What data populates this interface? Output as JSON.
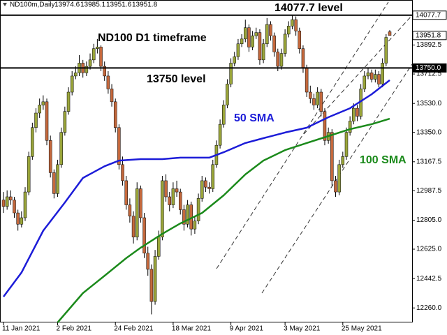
{
  "chart_data": {
    "type": "candlestick",
    "header": "ND100m,Daily",
    "title": "ND100 D1 timeframe",
    "categories": [
      "11 Jan 2021",
      null,
      null,
      null,
      null,
      null,
      null,
      null,
      null,
      null,
      null,
      null,
      null,
      null,
      null,
      "2 Feb 2021",
      null,
      null,
      null,
      null,
      null,
      null,
      null,
      null,
      null,
      null,
      null,
      null,
      null,
      null,
      null,
      "24 Feb 2021",
      null,
      null,
      null,
      null,
      null,
      null,
      null,
      null,
      null,
      null,
      null,
      null,
      null,
      null,
      null,
      "18 Mar 2021",
      null,
      null,
      null,
      null,
      null,
      null,
      null,
      null,
      null,
      null,
      null,
      null,
      null,
      null,
      null,
      "9 Apr 2021",
      null,
      null,
      null,
      null,
      null,
      null,
      null,
      null,
      null,
      null,
      null,
      null,
      null,
      null,
      "3 May 2021",
      null,
      null,
      null,
      null,
      null,
      null,
      null,
      null,
      null,
      null,
      null,
      null,
      null,
      null,
      null,
      "25 May 2021",
      null,
      null,
      null,
      null,
      null,
      null,
      null,
      null,
      null,
      null,
      null,
      null,
      null
    ],
    "candles": [
      [
        12930,
        12980,
        12850,
        12890
      ],
      [
        12890,
        12990,
        12870,
        12950
      ],
      [
        12950,
        12990,
        12900,
        12930
      ],
      [
        12930,
        12950,
        12820,
        12850
      ],
      [
        12850,
        12870,
        12740,
        12780
      ],
      [
        12780,
        12860,
        12760,
        12820
      ],
      [
        12820,
        13010,
        12800,
        12980
      ],
      [
        12980,
        13230,
        12960,
        13200
      ],
      [
        13200,
        13410,
        13180,
        13380
      ],
      [
        13380,
        13500,
        13350,
        13470
      ],
      [
        13470,
        13560,
        13440,
        13520
      ],
      [
        13520,
        13580,
        13490,
        13540
      ],
      [
        13540,
        13560,
        13270,
        13300
      ],
      [
        13300,
        13330,
        13070,
        13100
      ],
      [
        13100,
        13120,
        12940,
        12970
      ],
      [
        12970,
        13180,
        12950,
        13150
      ],
      [
        13150,
        13380,
        13130,
        13350
      ],
      [
        13350,
        13510,
        13330,
        13480
      ],
      [
        13480,
        13630,
        13460,
        13600
      ],
      [
        13600,
        13730,
        13580,
        13700
      ],
      [
        13700,
        13760,
        13680,
        13720
      ],
      [
        13720,
        13830,
        13700,
        13780
      ],
      [
        13780,
        13800,
        13690,
        13720
      ],
      [
        13720,
        13790,
        13700,
        13760
      ],
      [
        13760,
        13840,
        13740,
        13800
      ],
      [
        13800,
        13900,
        13780,
        13870
      ],
      [
        13870,
        13930,
        13840,
        13880
      ],
      [
        13880,
        13890,
        13730,
        13760
      ],
      [
        13760,
        13790,
        13670,
        13700
      ],
      [
        13700,
        13730,
        13590,
        13620
      ],
      [
        13620,
        13650,
        13510,
        13540
      ],
      [
        13540,
        13560,
        13350,
        13380
      ],
      [
        13380,
        13400,
        13120,
        13150
      ],
      [
        13150,
        13200,
        13020,
        13050
      ],
      [
        13050,
        13080,
        12870,
        12900
      ],
      [
        12900,
        12940,
        12790,
        12830
      ],
      [
        12830,
        12860,
        12660,
        12700
      ],
      [
        12700,
        13040,
        12680,
        13000
      ],
      [
        13000,
        13020,
        12790,
        12820
      ],
      [
        12820,
        12850,
        12570,
        12600
      ],
      [
        12600,
        12640,
        12460,
        12500
      ],
      [
        12500,
        12530,
        12220,
        12300
      ],
      [
        12300,
        12620,
        12280,
        12580
      ],
      [
        12580,
        12740,
        12560,
        12700
      ],
      [
        12700,
        13080,
        12680,
        13050
      ],
      [
        13050,
        13090,
        12920,
        12950
      ],
      [
        12950,
        12980,
        12860,
        12900
      ],
      [
        12900,
        13040,
        12880,
        13000
      ],
      [
        13000,
        13050,
        12950,
        12980
      ],
      [
        12980,
        13000,
        12840,
        12870
      ],
      [
        12870,
        12900,
        12740,
        12780
      ],
      [
        12780,
        12930,
        12760,
        12900
      ],
      [
        12900,
        12920,
        12710,
        12750
      ],
      [
        12750,
        12830,
        12720,
        12800
      ],
      [
        12800,
        12970,
        12780,
        12940
      ],
      [
        12940,
        13080,
        12920,
        13050
      ],
      [
        13050,
        13070,
        12980,
        13010
      ],
      [
        13010,
        13040,
        12970,
        13000
      ],
      [
        13000,
        13180,
        12980,
        13150
      ],
      [
        13150,
        13300,
        13130,
        13270
      ],
      [
        13270,
        13430,
        13250,
        13400
      ],
      [
        13400,
        13550,
        13380,
        13520
      ],
      [
        13520,
        13680,
        13500,
        13650
      ],
      [
        13650,
        13810,
        13630,
        13780
      ],
      [
        13780,
        13850,
        13760,
        13820
      ],
      [
        13820,
        13930,
        13800,
        13900
      ],
      [
        13900,
        13960,
        13880,
        13930
      ],
      [
        13930,
        14050,
        13910,
        14000
      ],
      [
        14000,
        14020,
        13850,
        13880
      ],
      [
        13880,
        13980,
        13860,
        13950
      ],
      [
        13950,
        14000,
        13930,
        13970
      ],
      [
        13970,
        13990,
        13770,
        13800
      ],
      [
        13800,
        13930,
        13780,
        13900
      ],
      [
        13900,
        14060,
        13880,
        14020
      ],
      [
        14020,
        14040,
        13920,
        13950
      ],
      [
        13950,
        13970,
        13820,
        13850
      ],
      [
        13850,
        13870,
        13730,
        13760
      ],
      [
        13760,
        13870,
        13740,
        13840
      ],
      [
        13840,
        13990,
        13820,
        13960
      ],
      [
        13960,
        14040,
        13940,
        14010
      ],
      [
        14010,
        14080,
        13990,
        14050
      ],
      [
        14050,
        14070,
        13950,
        13980
      ],
      [
        13980,
        14000,
        13840,
        13870
      ],
      [
        13870,
        13890,
        13720,
        13750
      ],
      [
        13750,
        13770,
        13570,
        13600
      ],
      [
        13600,
        13640,
        13530,
        13560
      ],
      [
        13560,
        13590,
        13490,
        13520
      ],
      [
        13520,
        13630,
        13500,
        13600
      ],
      [
        13600,
        13620,
        13450,
        13480
      ],
      [
        13480,
        13500,
        13270,
        13300
      ],
      [
        13300,
        13380,
        13280,
        13350
      ],
      [
        13350,
        13370,
        13020,
        13050
      ],
      [
        13050,
        13080,
        12950,
        12980
      ],
      [
        12980,
        13180,
        12960,
        13150
      ],
      [
        13150,
        13230,
        13130,
        13200
      ],
      [
        13200,
        13380,
        13180,
        13350
      ],
      [
        13350,
        13450,
        13330,
        13420
      ],
      [
        13420,
        13530,
        13400,
        13500
      ],
      [
        13500,
        13520,
        13420,
        13450
      ],
      [
        13450,
        13650,
        13430,
        13620
      ],
      [
        13620,
        13730,
        13600,
        13700
      ],
      [
        13700,
        13750,
        13680,
        13720
      ],
      [
        13720,
        13740,
        13660,
        13680
      ],
      [
        13680,
        13740,
        13660,
        13710
      ],
      [
        13710,
        13730,
        13630,
        13650
      ],
      [
        13650,
        13810,
        13630,
        13780
      ],
      [
        13780,
        13960,
        13760,
        13940
      ],
      [
        13974.6,
        13985.1,
        13951.6,
        13951.8
      ]
    ],
    "colors": {
      "up": "#9aa53a",
      "down": "#c4683c"
    },
    "series": [
      {
        "name": "50 SMA",
        "color": "#1c1cd8",
        "x": [
          0,
          5,
          11,
          17,
          22,
          28,
          32,
          38,
          44,
          49,
          57,
          61,
          67,
          72,
          78,
          84,
          90,
          96,
          102,
          107
        ],
        "values": [
          12330,
          12480,
          12740,
          12915,
          13067,
          13140,
          13175,
          13184,
          13184,
          13193,
          13193,
          13227,
          13284,
          13314,
          13349,
          13379,
          13444,
          13500,
          13587,
          13674
        ]
      },
      {
        "name": "100 SMA",
        "color": "#1b8a1b",
        "x": [
          15,
          22,
          28,
          34,
          38,
          44,
          49,
          55,
          61,
          67,
          72,
          78,
          84,
          90,
          96,
          102,
          107
        ],
        "values": [
          12170,
          12352,
          12460,
          12569,
          12634,
          12720,
          12785,
          12850,
          12959,
          13089,
          13175,
          13240,
          13284,
          13327,
          13370,
          13401,
          13435
        ]
      }
    ],
    "levels": [
      {
        "value": 14077.7,
        "text": "14077.7 level"
      },
      {
        "value": {
          "value": 13750,
          "label": "13750.0"
        },
        "text": "13750 level"
      }
    ],
    "ylim": [
      12170,
      14172
    ],
    "yticks": [
      13892.5,
      13712.5,
      {
        "value": 13530,
        "label": "13530.0"
      },
      {
        "value": 13350,
        "label": "13350.0"
      },
      13167.5,
      12987.5,
      {
        "value": 12805,
        "label": "12805.0"
      },
      {
        "value": 12625,
        "label": "12625.0"
      },
      12442.5,
      {
        "value": 12260,
        "label": "12260.0"
      }
    ]
  }
}
